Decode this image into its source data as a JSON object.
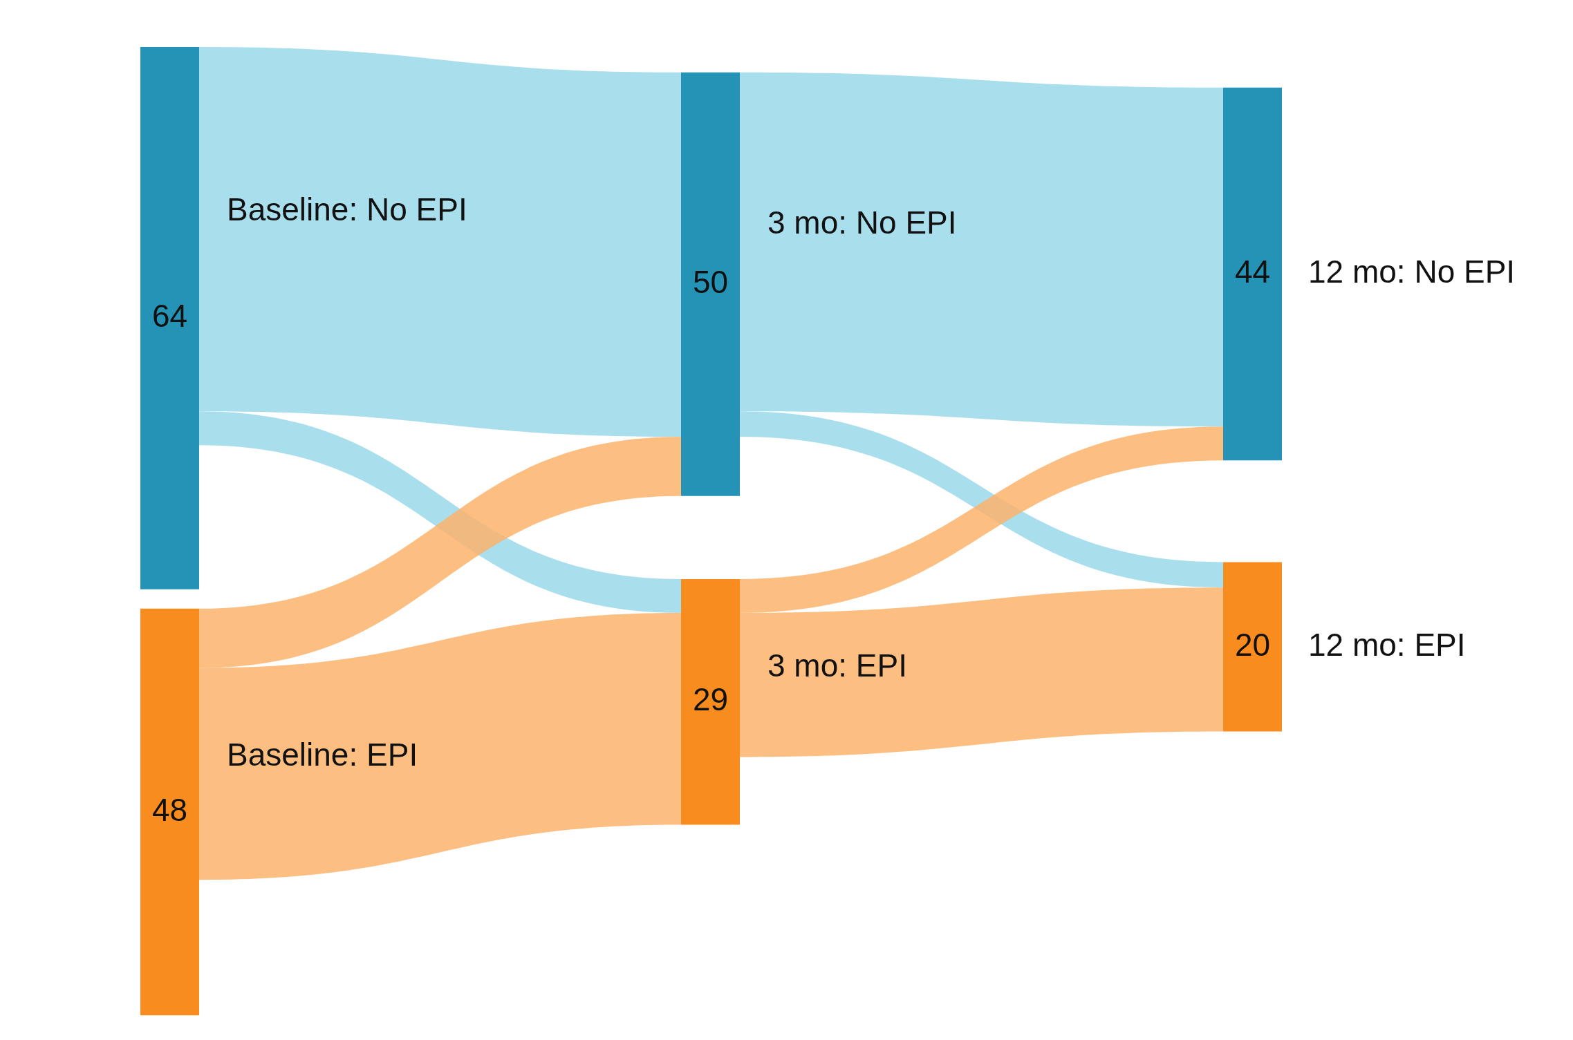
{
  "chart_data": {
    "type": "other",
    "categories": [
      "Baseline: No EPI",
      "Baseline: EPI",
      "3 mo: No EPI",
      "3 mo: EPI",
      "12 mo: No EPI",
      "12 mo: EPI"
    ],
    "values": [
      64,
      48,
      50,
      29,
      44,
      20
    ],
    "colors": [
      "#2593b5",
      "#f98c1f",
      "#2593b5",
      "#f98c1f",
      "#2593b5",
      "#f98c1f"
    ],
    "data_labels": true
  }
}
